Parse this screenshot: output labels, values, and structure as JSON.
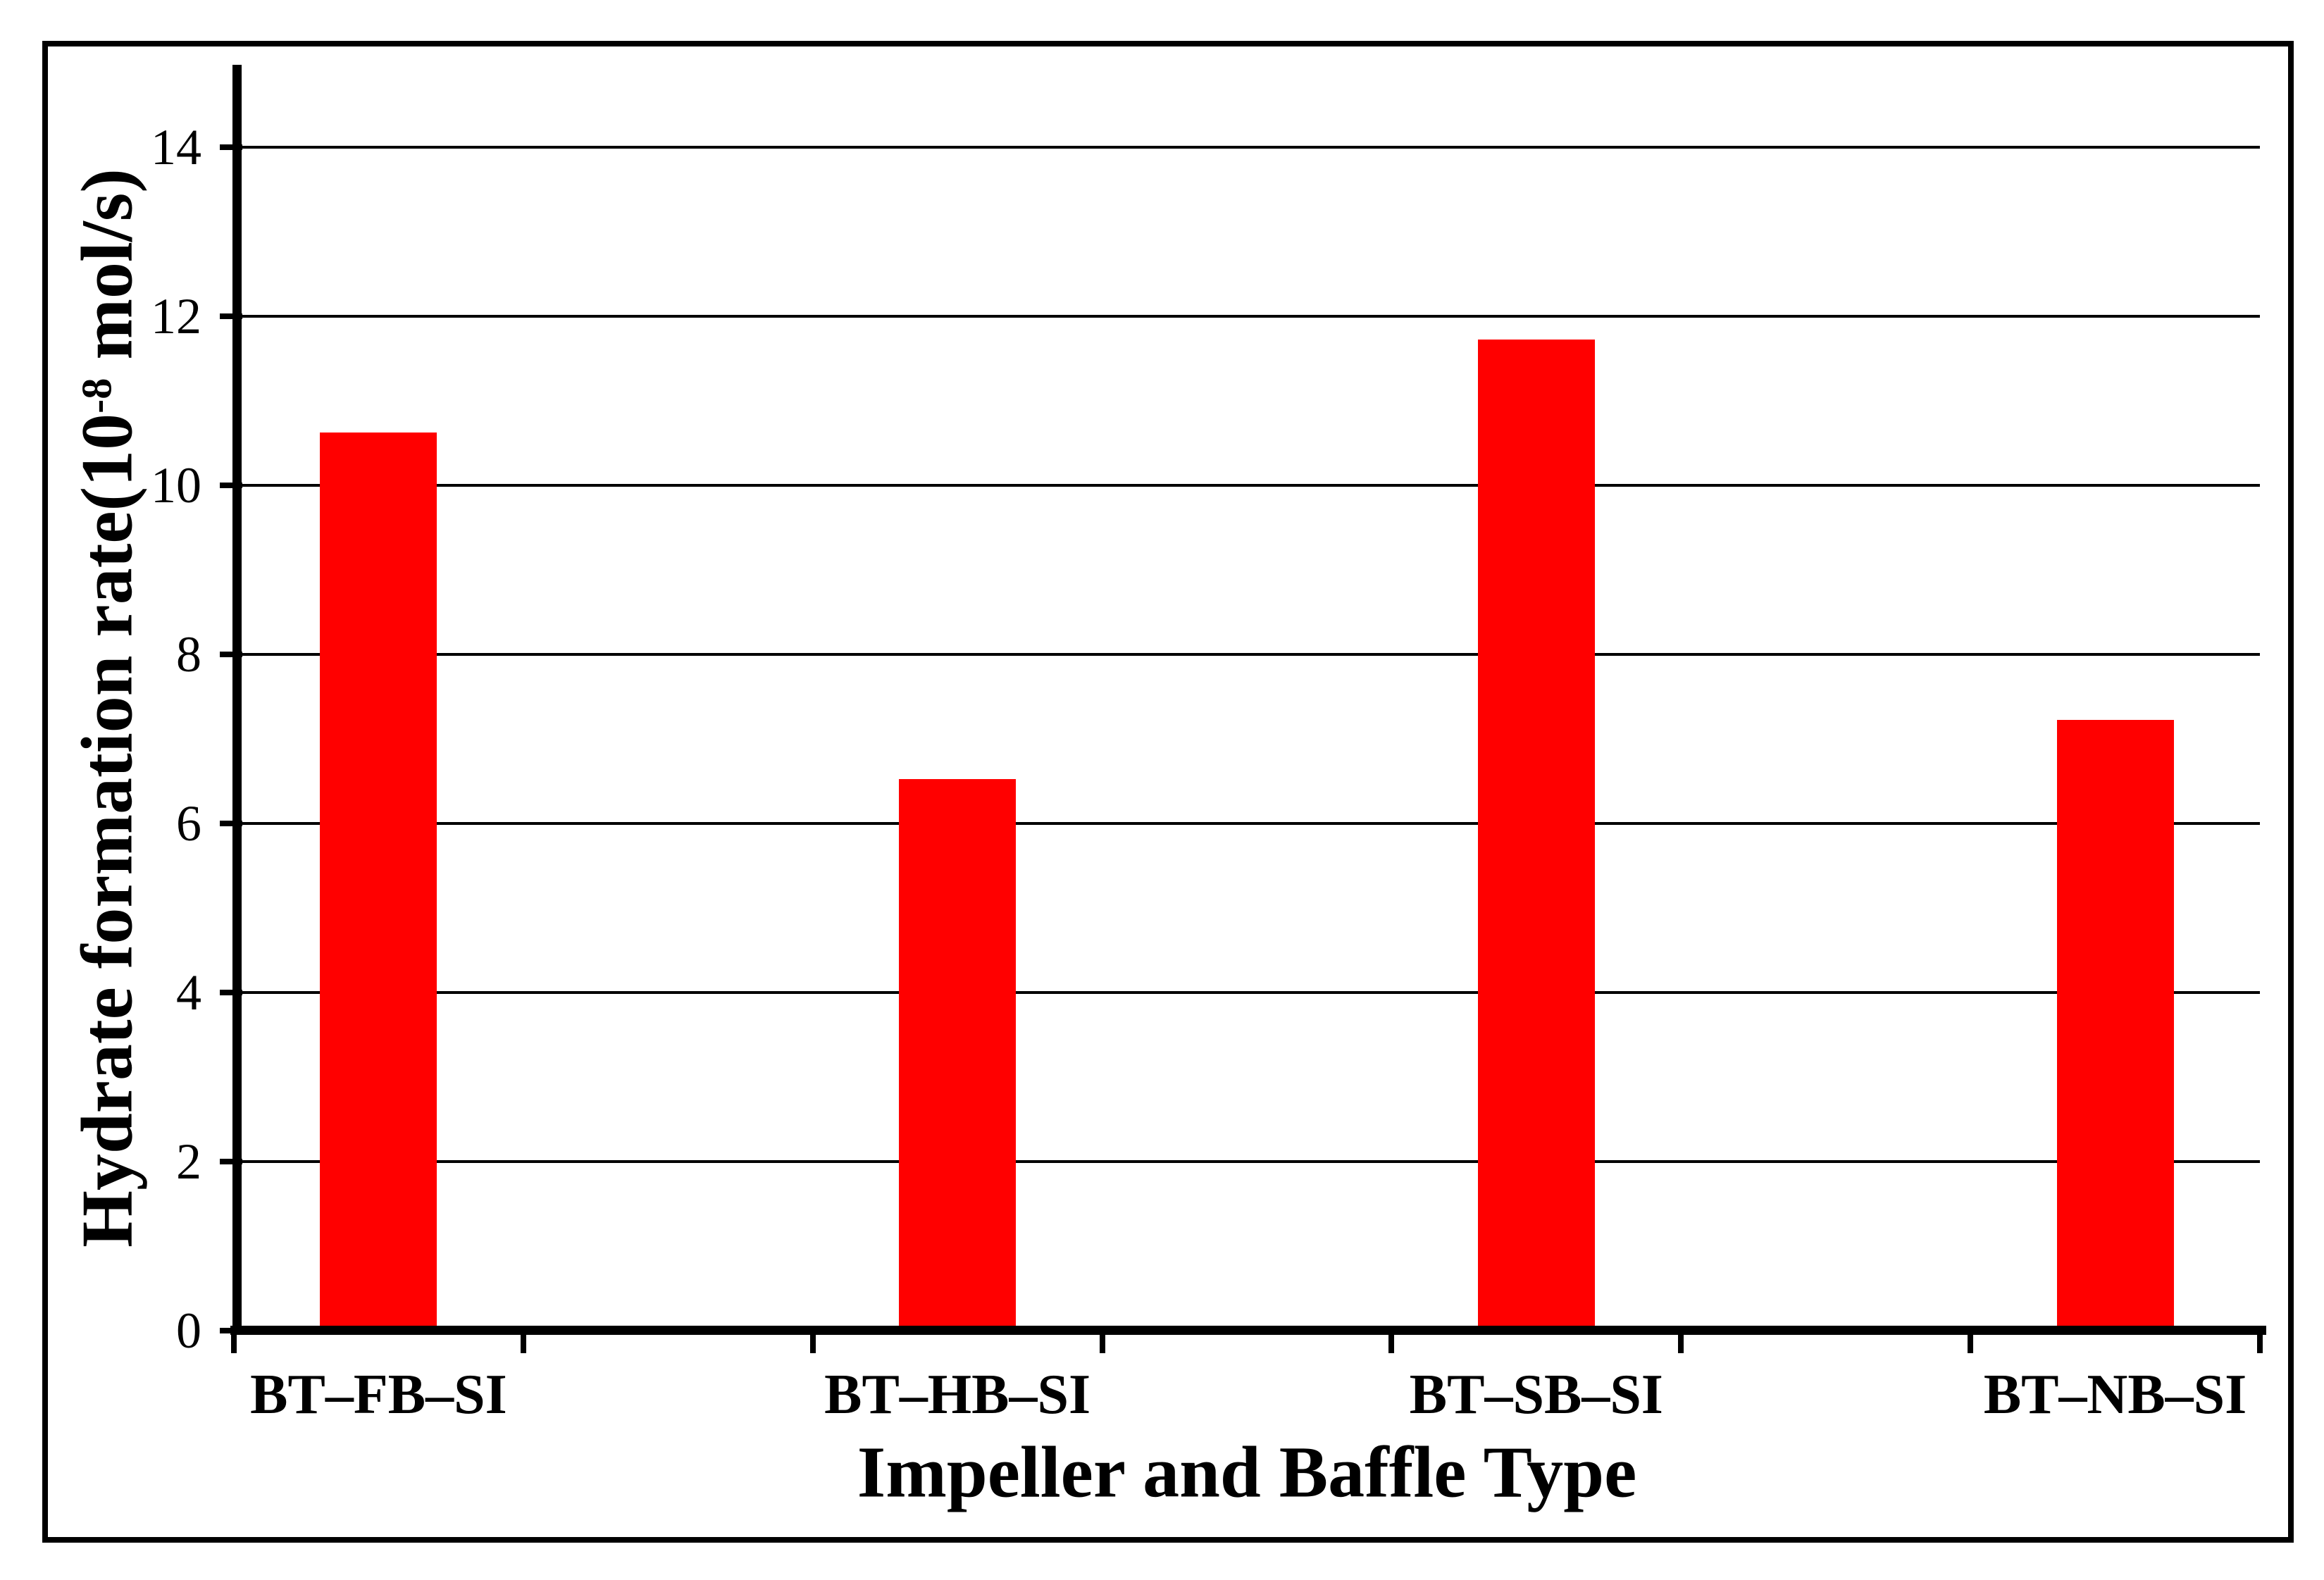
{
  "chart_data": {
    "type": "bar",
    "title": "",
    "categories": [
      "BT–FB–SI",
      "BT–HB–SI",
      "BT–SB–SI",
      "BT–NB–SI"
    ],
    "values": [
      10.6,
      6.5,
      11.7,
      7.2
    ],
    "xlabel": "Impeller and Baffle Type",
    "ylabel": "Hydrate formation rate(10⁻⁸ mol/s)",
    "ylabel_parts": {
      "prefix": "Hydrate formation rate(10",
      "superscript": "-8",
      "suffix": " mol/s)"
    },
    "ylim": [
      0,
      15
    ],
    "yticks": [
      0,
      2,
      4,
      6,
      8,
      10,
      12,
      14
    ],
    "ytick_labels": [
      "0",
      "2",
      "4",
      "6",
      "8",
      "10",
      "12",
      "14"
    ],
    "grid": "horizontal-only",
    "legend": "none",
    "bar_color": "#ff0000",
    "line_color": "#000000",
    "background": "#ffffff",
    "text_color": "#000000"
  }
}
